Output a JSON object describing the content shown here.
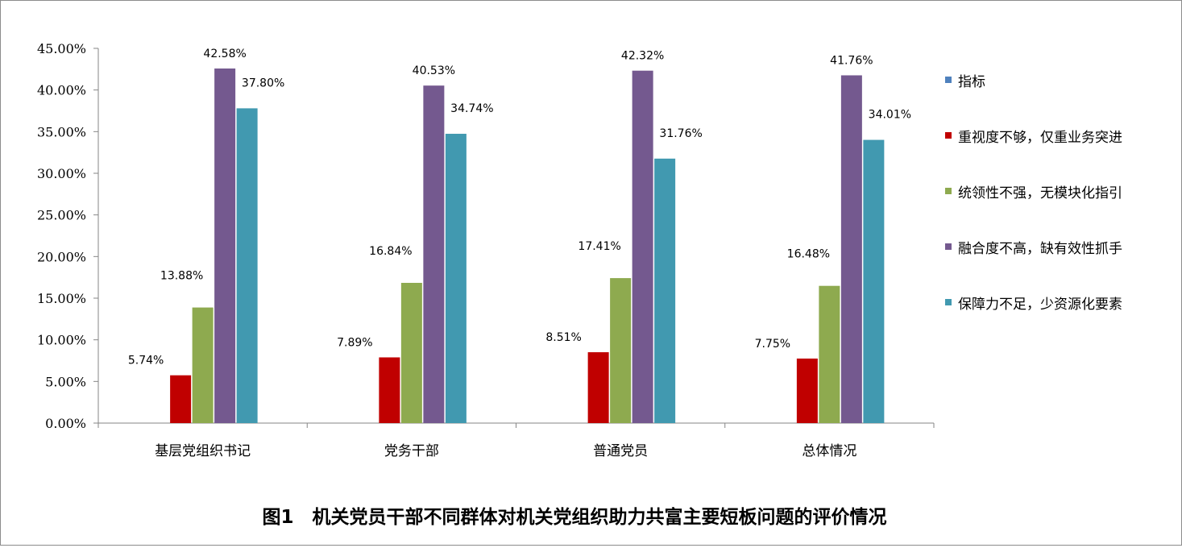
{
  "chart_data": {
    "type": "bar",
    "title": "图1　机关党员干部不同群体对机关党组织助力共富主要短板问题的评价情况",
    "categories": [
      "基层党组织书记",
      "党务干部",
      "普通党员",
      "总体情况"
    ],
    "ylim": [
      0,
      45
    ],
    "yticks": [
      "0.00%",
      "5.00%",
      "10.00%",
      "15.00%",
      "20.00%",
      "25.00%",
      "30.00%",
      "35.00%",
      "40.00%",
      "45.00%"
    ],
    "legend_position": "right",
    "grid": false,
    "series": [
      {
        "name": "指标",
        "color": "#4f81bd",
        "values": [
          null,
          null,
          null,
          null
        ],
        "labels": [
          "",
          "",
          "",
          ""
        ]
      },
      {
        "name": "重视度不够，仅重业务突进",
        "color": "#c00000",
        "values": [
          5.74,
          7.89,
          8.51,
          7.75
        ],
        "labels": [
          "5.74%",
          "7.89%",
          "8.51%",
          "7.75%"
        ]
      },
      {
        "name": "统领性不强，无模块化指引",
        "color": "#8eaa4f",
        "values": [
          13.88,
          16.84,
          17.41,
          16.48
        ],
        "labels": [
          "13.88%",
          "16.84%",
          "17.41%",
          "16.48%"
        ]
      },
      {
        "name": "融合度不高，缺有效性抓手",
        "color": "#74598f",
        "values": [
          42.58,
          40.53,
          42.32,
          41.76
        ],
        "labels": [
          "42.58%",
          "40.53%",
          "42.32%",
          "41.76%"
        ]
      },
      {
        "name": "保障力不足，少资源化要素",
        "color": "#4199b0",
        "values": [
          37.8,
          34.74,
          31.76,
          34.01
        ],
        "labels": [
          "37.80%",
          "34.74%",
          "31.76%",
          "34.01%"
        ]
      }
    ]
  }
}
